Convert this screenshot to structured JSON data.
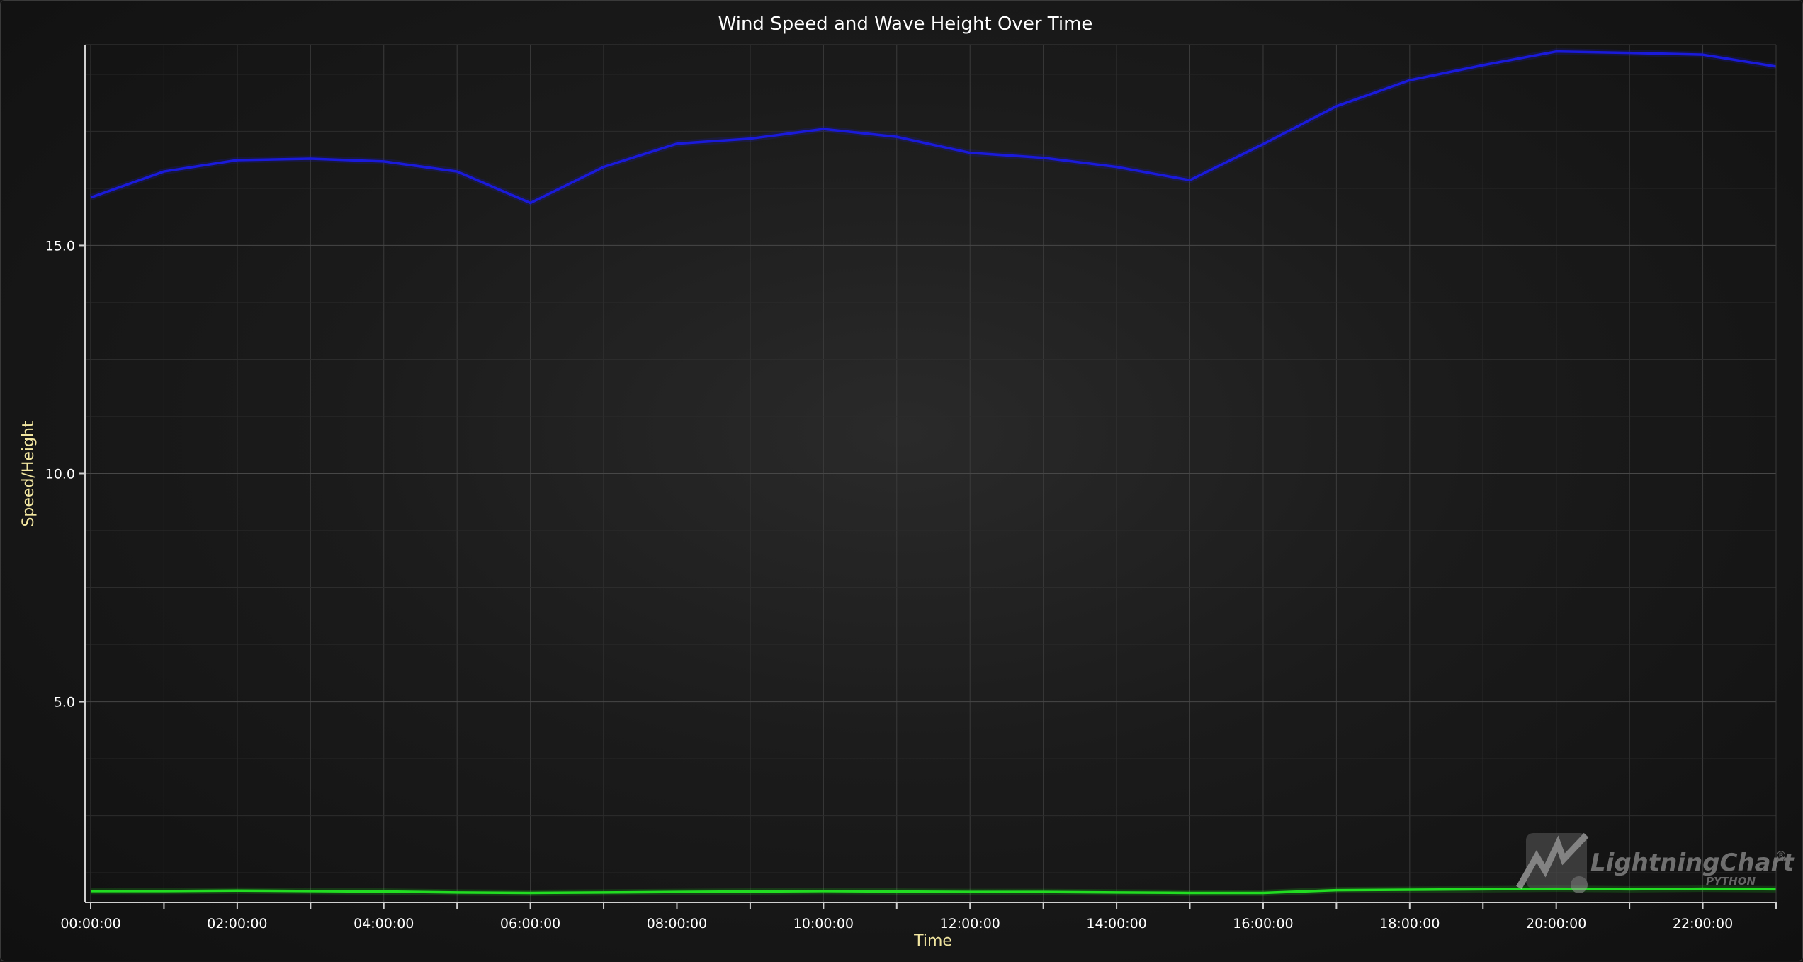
{
  "chart_data": {
    "type": "line",
    "title": "Wind Speed and Wave Height Over Time",
    "xlabel": "Time",
    "ylabel": "Speed/Height",
    "x": [
      "00:00:00",
      "01:00:00",
      "02:00:00",
      "03:00:00",
      "04:00:00",
      "05:00:00",
      "06:00:00",
      "07:00:00",
      "08:00:00",
      "09:00:00",
      "10:00:00",
      "11:00:00",
      "12:00:00",
      "13:00:00",
      "14:00:00",
      "15:00:00",
      "16:00:00",
      "17:00:00",
      "18:00:00",
      "19:00:00",
      "20:00:00",
      "21:00:00",
      "22:00:00",
      "23:00:00"
    ],
    "x_tick_labels": [
      "00:00:00",
      "02:00:00",
      "04:00:00",
      "06:00:00",
      "08:00:00",
      "10:00:00",
      "12:00:00",
      "14:00:00",
      "16:00:00",
      "18:00:00",
      "20:00:00",
      "22:00:00"
    ],
    "ylim": [
      0.6,
      19.4
    ],
    "y_ticks": [
      5.0,
      10.0,
      15.0
    ],
    "y_tick_labels": [
      "5.0",
      "10.0",
      "15.0"
    ],
    "grid": true,
    "series": [
      {
        "color": "#1a1adb",
        "values": [
          16.05,
          16.62,
          16.87,
          16.9,
          16.84,
          16.62,
          15.93,
          16.72,
          17.23,
          17.34,
          17.55,
          17.38,
          17.03,
          16.92,
          16.72,
          16.43,
          17.22,
          18.05,
          18.62,
          18.95,
          19.25,
          19.22,
          19.18,
          18.92
        ]
      },
      {
        "color": "#22dd22",
        "values": [
          0.85,
          0.85,
          0.86,
          0.85,
          0.84,
          0.82,
          0.81,
          0.82,
          0.83,
          0.84,
          0.85,
          0.84,
          0.83,
          0.83,
          0.82,
          0.81,
          0.81,
          0.87,
          0.88,
          0.89,
          0.9,
          0.89,
          0.9,
          0.89
        ]
      }
    ]
  },
  "logo": {
    "brand": "LightningChart",
    "sub": "PYTHON",
    "mark": "®"
  }
}
